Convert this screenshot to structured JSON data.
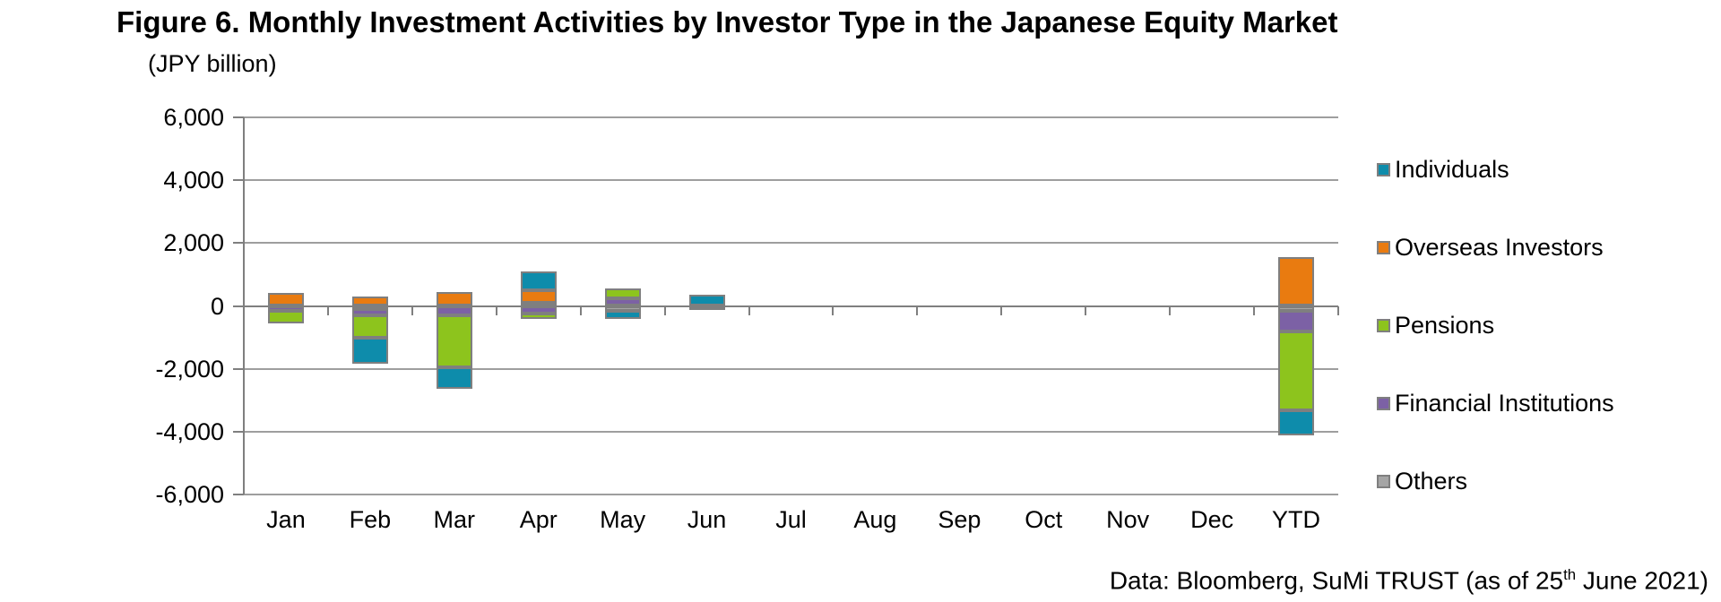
{
  "figure": {
    "source_note": {
      "prefix": "Data: Bloomberg, SuMi TRUST (as of 25",
      "superscript": "th",
      "suffix": " June 2021)"
    }
  },
  "chart_data": {
    "type": "bar",
    "stacked": true,
    "title": "Figure 6. Monthly Investment Activities by Investor Type in the Japanese Equity Market",
    "ylabel": "(JPY billion)",
    "xlabel": "",
    "categories": [
      "Jan",
      "Feb",
      "Mar",
      "Apr",
      "May",
      "Jun",
      "Jul",
      "Aug",
      "Sep",
      "Oct",
      "Nov",
      "Dec",
      "YTD"
    ],
    "series": [
      {
        "name": "Individuals",
        "color": "#0e8cab",
        "values": [
          0,
          -850,
          -700,
          600,
          -250,
          350,
          0,
          0,
          0,
          0,
          0,
          0,
          -810
        ]
      },
      {
        "name": "Overseas Investors",
        "color": "#e97b10",
        "values": [
          400,
          300,
          450,
          400,
          0,
          0,
          0,
          0,
          0,
          0,
          0,
          0,
          1550
        ]
      },
      {
        "name": "Pensions",
        "color": "#8dc41d",
        "values": [
          -400,
          -700,
          -1650,
          -150,
          320,
          0,
          0,
          0,
          0,
          0,
          0,
          0,
          -2520
        ]
      },
      {
        "name": "Financial Institutions",
        "color": "#7c61a5",
        "values": [
          -150,
          -200,
          -300,
          -250,
          250,
          0,
          0,
          0,
          0,
          0,
          0,
          0,
          -650
        ]
      },
      {
        "name": "Others",
        "color": "#a5a5a5",
        "values": [
          0,
          -100,
          0,
          100,
          -150,
          -100,
          0,
          0,
          0,
          0,
          0,
          0,
          -150
        ]
      }
    ],
    "ylim": [
      -6000,
      6000
    ],
    "ytick_step": 2000,
    "ytick_labels": [
      "6,000",
      "4,000",
      "2,000",
      "0",
      "-2,000",
      "-4,000",
      "-6,000"
    ],
    "grid": true,
    "legend_position": "right",
    "stack_order_from_axis": [
      "Others",
      "Financial Institutions",
      "Pensions",
      "Overseas Investors",
      "Individuals"
    ]
  }
}
